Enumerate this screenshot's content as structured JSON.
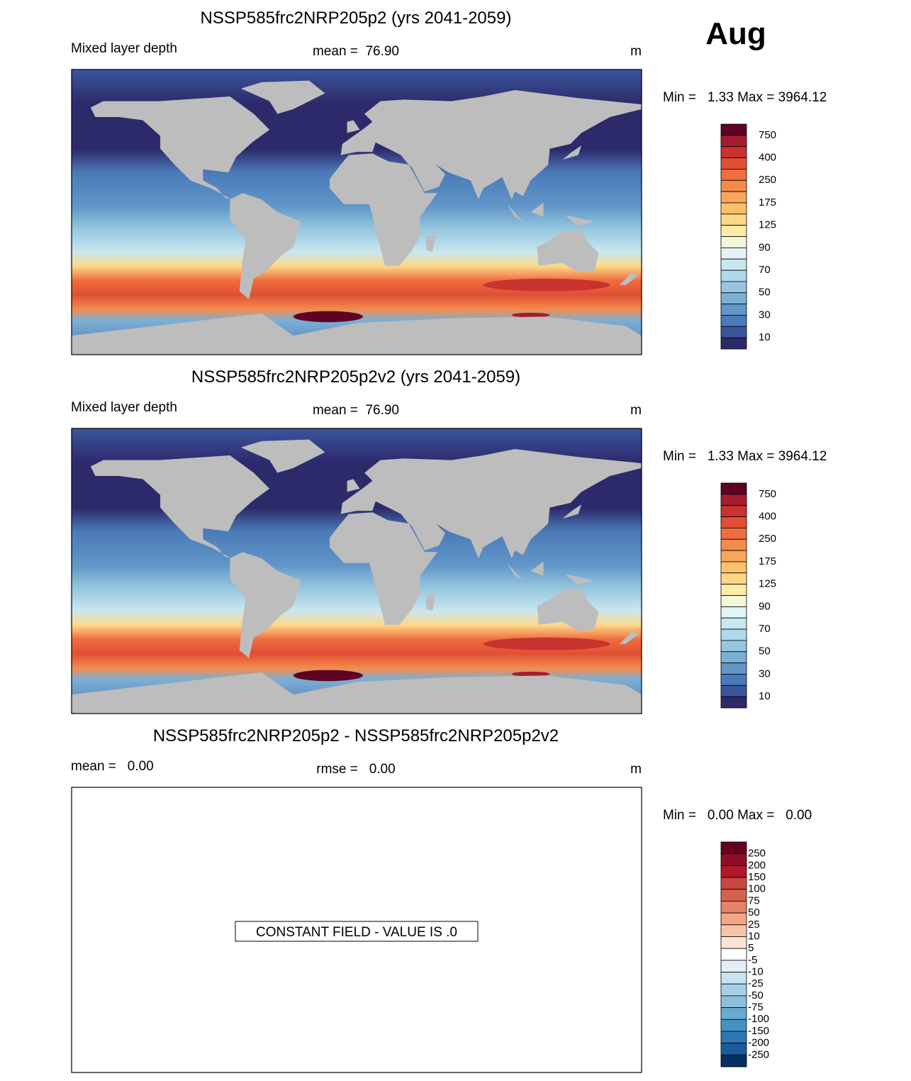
{
  "month": "Aug",
  "panels": [
    {
      "title": "NSSP585frc2NRP205p2 (yrs 2041-2059)",
      "left_label": "Mixed layer depth",
      "center_label": "mean =  76.90",
      "units": "m",
      "range_label": "Min =   1.33 Max = 3964.12",
      "colorbar": {
        "labels": [
          750,
          400,
          250,
          175,
          125,
          90,
          70,
          50,
          30,
          10
        ],
        "colors": [
          "#5e0324",
          "#a51d2d",
          "#c9322e",
          "#e04f34",
          "#ef6d3f",
          "#f58b4b",
          "#f9a65a",
          "#fcc06b",
          "#fdd887",
          "#feeca6",
          "#f2f8d8",
          "#e2f2f6",
          "#c9e7f0",
          "#b0d9ea",
          "#96c6df",
          "#7cafd4",
          "#6196c8",
          "#4a7ab8",
          "#3a559d",
          "#2d2a6b"
        ]
      }
    },
    {
      "title": "NSSP585frc2NRP205p2v2 (yrs 2041-2059)",
      "left_label": "Mixed layer depth",
      "center_label": "mean =  76.90",
      "units": "m",
      "range_label": "Min =   1.33 Max = 3964.12",
      "colorbar": {
        "labels": [
          750,
          400,
          250,
          175,
          125,
          90,
          70,
          50,
          30,
          10
        ],
        "colors": [
          "#5e0324",
          "#a51d2d",
          "#c9322e",
          "#e04f34",
          "#ef6d3f",
          "#f58b4b",
          "#f9a65a",
          "#fcc06b",
          "#fdd887",
          "#feeca6",
          "#f2f8d8",
          "#e2f2f6",
          "#c9e7f0",
          "#b0d9ea",
          "#96c6df",
          "#7cafd4",
          "#6196c8",
          "#4a7ab8",
          "#3a559d",
          "#2d2a6b"
        ]
      }
    },
    {
      "title": "NSSP585frc2NRP205p2 - NSSP585frc2NRP205p2v2",
      "left_label": "mean =   0.00",
      "center_label": "rmse =   0.00",
      "units": "m",
      "range_label": "Min =   0.00 Max =   0.00",
      "annotation": "CONSTANT FIELD - VALUE IS .0",
      "colorbar": {
        "labels": [
          250,
          200,
          150,
          100,
          75,
          50,
          25,
          10,
          5,
          -5,
          -10,
          -25,
          -50,
          -75,
          -100,
          -150,
          -200,
          -250
        ],
        "colors": [
          "#67001f",
          "#8e0d27",
          "#b2182b",
          "#c94741",
          "#d6604d",
          "#e58267",
          "#f4a582",
          "#f8c4a8",
          "#fde3d4",
          "#ffffff",
          "#e3eef6",
          "#c9e2f0",
          "#a7d0e4",
          "#8cbfdc",
          "#6aaad0",
          "#4393c3",
          "#2f77b4",
          "#1a5a9e",
          "#053061"
        ]
      }
    }
  ]
}
